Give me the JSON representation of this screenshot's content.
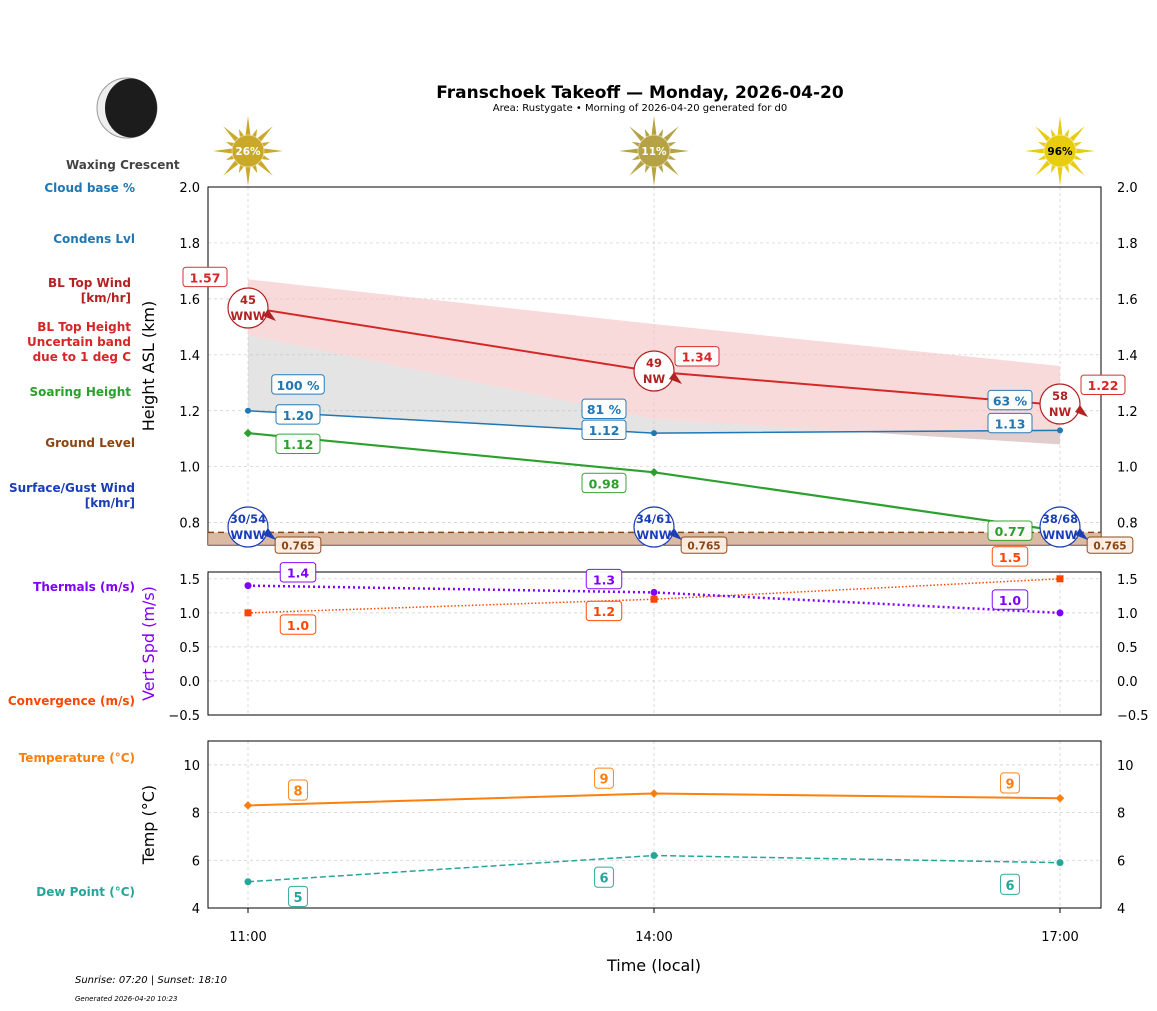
{
  "title": "Franschoek Takeoff — Monday, 2026-04-20",
  "subtitle": "Area: Rustygate • Morning of 2026-04-20 generated for d0",
  "moon_phase": "Waxing Crescent",
  "footer": {
    "sun": "Sunrise: 07:20 | Sunset: 18:10",
    "generated": "Generated 2026-04-20 10:23"
  },
  "left_labels": [
    {
      "text": "Cloud base %",
      "color": "#1f77b4"
    },
    {
      "text": "Condens Lvl",
      "color": "#1f77b4"
    },
    {
      "text": "BL Top Wind\n[km/hr]",
      "color": "#b22222"
    },
    {
      "text": "BL Top Height\nUncertain band\ndue to 1 deg C",
      "color": "#d62728"
    },
    {
      "text": "Soaring Height",
      "color": "#2ca02c"
    },
    {
      "text": "Ground Level",
      "color": "#8b4513"
    },
    {
      "text": "Surface/Gust Wind\n[km/hr]",
      "color": "#1a3db8"
    },
    {
      "text": "Thermals (m/s)",
      "color": "#8000ff"
    },
    {
      "text": "Convergence (m/s)",
      "color": "#ff4500"
    },
    {
      "text": "Temperature (°C)",
      "color": "#ff7f0e"
    },
    {
      "text": "Dew Point (°C)",
      "color": "#26a69a"
    }
  ],
  "chart_data": [
    {
      "type": "line",
      "ylabel": "Height ASL (km)",
      "ylim": [
        0.72,
        2.0
      ],
      "yticks": [
        "0.8",
        "1.0",
        "1.2",
        "1.4",
        "1.6",
        "1.8",
        "2.0"
      ],
      "x": [
        "11:00",
        "14:00",
        "17:00"
      ],
      "grid": true,
      "sun_percent": [
        "26%",
        "11%",
        "96%"
      ],
      "bl_top": [
        1.57,
        1.34,
        1.22
      ],
      "bl_band_upper": [
        1.67,
        1.51,
        1.36
      ],
      "bl_band_lower": [
        1.47,
        1.17,
        1.08
      ],
      "condens": [
        1.2,
        1.12,
        1.13
      ],
      "cloud_base_pct": [
        "100 %",
        "81 %",
        "63 %"
      ],
      "soaring": [
        1.12,
        0.98,
        0.77
      ],
      "ground": 0.765,
      "bl_wind": [
        {
          "speed": "45",
          "dir": "WNW"
        },
        {
          "speed": "49",
          "dir": "NW"
        },
        {
          "speed": "58",
          "dir": "NW"
        }
      ],
      "surface_wind": [
        {
          "speed": "30/54",
          "dir": "WNW"
        },
        {
          "speed": "34/61",
          "dir": "WNW"
        },
        {
          "speed": "38/68",
          "dir": "WNW"
        }
      ]
    },
    {
      "type": "line",
      "ylabel": "Vert Spd (m/s)",
      "ylim": [
        -0.5,
        1.6
      ],
      "yticks": [
        "−0.5",
        "0.0",
        "0.5",
        "1.0",
        "1.5"
      ],
      "thermals": [
        1.4,
        1.3,
        1.0
      ],
      "convergence": [
        1.0,
        1.2,
        1.5
      ]
    },
    {
      "type": "line",
      "ylabel": "Temp (°C)",
      "xlabel": "Time (local)",
      "ylim": [
        4,
        11
      ],
      "yticks": [
        "4",
        "6",
        "8",
        "10"
      ],
      "temperature": [
        8.3,
        8.8,
        8.6
      ],
      "temperature_labels": [
        "8",
        "9",
        "9"
      ],
      "dew_point": [
        5.1,
        6.2,
        5.9
      ],
      "dew_point_labels": [
        "5",
        "6",
        "6"
      ]
    }
  ]
}
